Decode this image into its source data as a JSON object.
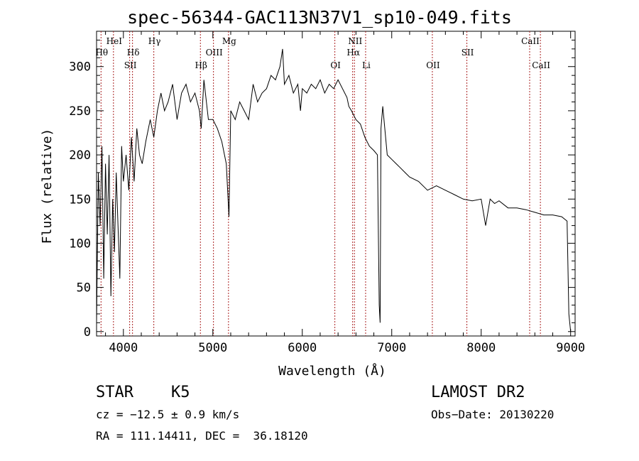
{
  "chart_data": {
    "type": "line",
    "title": "spec-56344-GAC113N37V1_sp10-049.fits",
    "xlabel": "Wavelength (Å)",
    "ylabel": "Flux (relative)",
    "xlim": [
      3700,
      9050
    ],
    "ylim": [
      -5,
      340
    ],
    "xticks": [
      4000,
      5000,
      6000,
      7000,
      8000,
      9000
    ],
    "yticks": [
      0,
      50,
      100,
      150,
      200,
      250,
      300
    ],
    "grid": false,
    "line_color": "#000000",
    "marker_color": "#aa2222",
    "series": [
      {
        "x": [
          3700,
          3720,
          3740,
          3760,
          3780,
          3800,
          3820,
          3840,
          3860,
          3880,
          3900,
          3920,
          3940,
          3960,
          3980,
          4000,
          4030,
          4060,
          4090,
          4120,
          4150,
          4180,
          4210,
          4250,
          4300,
          4340,
          4380,
          4420,
          4460,
          4500,
          4550,
          4600,
          4650,
          4700,
          4750,
          4800,
          4850,
          4870,
          4900,
          4950,
          5000,
          5050,
          5100,
          5150,
          5180,
          5200,
          5250,
          5300,
          5350,
          5400,
          5450,
          5500,
          5550,
          5600,
          5650,
          5700,
          5750,
          5780,
          5800,
          5850,
          5900,
          5950,
          5980,
          6000,
          6050,
          6100,
          6150,
          6200,
          6250,
          6300,
          6350,
          6400,
          6450,
          6500,
          6520,
          6550,
          6600,
          6650,
          6700,
          6750,
          6800,
          6840,
          6860,
          6870,
          6880,
          6900,
          6950,
          7000,
          7050,
          7100,
          7150,
          7200,
          7300,
          7400,
          7500,
          7600,
          7700,
          7800,
          7900,
          8000,
          8050,
          8100,
          8150,
          8200,
          8300,
          8400,
          8500,
          8600,
          8700,
          8800,
          8900,
          8960,
          8980,
          9000
        ],
        "y": [
          10,
          180,
          120,
          210,
          60,
          190,
          110,
          200,
          40,
          150,
          90,
          180,
          120,
          60,
          210,
          170,
          200,
          160,
          220,
          170,
          230,
          200,
          190,
          215,
          240,
          220,
          250,
          270,
          250,
          260,
          280,
          240,
          270,
          280,
          260,
          270,
          250,
          230,
          285,
          240,
          240,
          230,
          215,
          190,
          130,
          250,
          240,
          260,
          250,
          240,
          280,
          260,
          270,
          275,
          290,
          285,
          300,
          320,
          280,
          290,
          270,
          280,
          250,
          275,
          270,
          280,
          275,
          285,
          270,
          280,
          275,
          285,
          275,
          265,
          255,
          250,
          240,
          235,
          220,
          210,
          205,
          200,
          30,
          10,
          230,
          255,
          200,
          195,
          190,
          185,
          180,
          175,
          170,
          160,
          165,
          160,
          155,
          150,
          148,
          150,
          120,
          150,
          145,
          148,
          140,
          140,
          138,
          135,
          132,
          132,
          130,
          125,
          20,
          0
        ]
      }
    ],
    "lines": [
      {
        "wl": 3750,
        "label": "Hθ",
        "row": 2
      },
      {
        "wl": 3889,
        "label": "HeI",
        "row": 1
      },
      {
        "wl": 4070,
        "label": "SII",
        "row": 3
      },
      {
        "wl": 4102,
        "label": "Hδ",
        "row": 2
      },
      {
        "wl": 4340,
        "label": "Hγ",
        "row": 1
      },
      {
        "wl": 4861,
        "label": "Hβ",
        "row": 3
      },
      {
        "wl": 5007,
        "label": "OIII",
        "row": 2
      },
      {
        "wl": 5175,
        "label": "Mg",
        "row": 1
      },
      {
        "wl": 6364,
        "label": "OI",
        "row": 3
      },
      {
        "wl": 6563,
        "label": "Hα",
        "row": 2
      },
      {
        "wl": 6583,
        "label": "NII",
        "row": 1
      },
      {
        "wl": 6708,
        "label": "Li",
        "row": 3
      },
      {
        "wl": 7454,
        "label": "OII",
        "row": 3
      },
      {
        "wl": 7840,
        "label": "SII",
        "row": 2
      },
      {
        "wl": 8542,
        "label": "CaII",
        "row": 1
      },
      {
        "wl": 8662,
        "label": "CaII",
        "row": 3
      }
    ]
  },
  "info": {
    "class": "STAR    K5",
    "survey": "LAMOST DR2",
    "cz": "cz = −12.5 ± 0.9 km/s",
    "obsdate": "Obs−Date: 20130220",
    "radec": "RA = 111.14411, DEC =  36.18120"
  }
}
